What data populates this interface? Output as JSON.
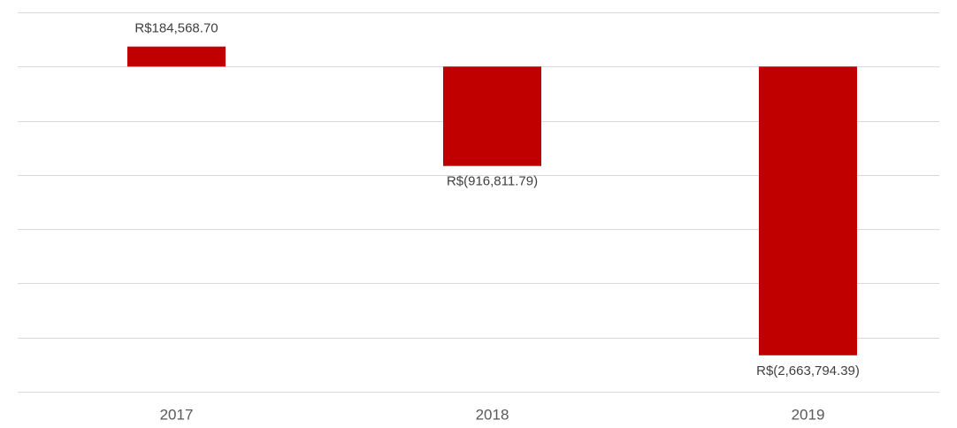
{
  "chart_data": {
    "type": "bar",
    "categories": [
      "2017",
      "2018",
      "2019"
    ],
    "values": [
      184568.7,
      -916811.79,
      -2663794.39
    ],
    "value_labels": [
      "R$184,568.70",
      "R$(916,811.79)",
      "R$(2,663,794.39)"
    ],
    "color": "#c00000",
    "ylim": [
      -3000000,
      500000
    ],
    "yticks": [
      -3000000,
      -2500000,
      -2000000,
      -1500000,
      -1000000,
      -500000,
      0,
      500000
    ],
    "grid": true
  }
}
